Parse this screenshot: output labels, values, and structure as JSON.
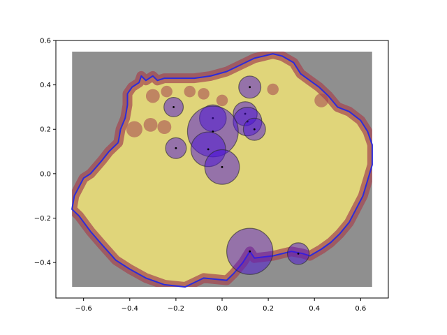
{
  "chart_data": {
    "type": "scatter",
    "title": "",
    "xlabel": "",
    "ylabel": "",
    "xlim": [
      -0.72,
      0.72
    ],
    "ylim": [
      -0.56,
      0.6
    ],
    "xticks": [
      -0.6,
      -0.4,
      -0.2,
      0.0,
      0.2,
      0.4,
      0.6
    ],
    "xtick_labels": [
      "−0.6",
      "−0.4",
      "−0.2",
      "0.0",
      "0.2",
      "0.4",
      "0.6"
    ],
    "yticks": [
      -0.4,
      -0.2,
      0.0,
      0.2,
      0.4,
      0.6
    ],
    "ytick_labels": [
      "−0.4",
      "−0.2",
      "0.0",
      "0.2",
      "0.4",
      "0.6"
    ],
    "grid": false,
    "background_image": {
      "extent": [
        -0.65,
        0.65,
        -0.51,
        0.55
      ],
      "colors": {
        "backdrop": "#8f8f8f",
        "fill": "#e0d57a",
        "stain": "#a4434f"
      }
    },
    "outline": {
      "color": "#2b2bdc",
      "points": [
        [
          -0.45,
          0.14
        ],
        [
          -0.44,
          0.2
        ],
        [
          -0.42,
          0.25
        ],
        [
          -0.41,
          0.31
        ],
        [
          -0.41,
          0.36
        ],
        [
          -0.39,
          0.39
        ],
        [
          -0.36,
          0.41
        ],
        [
          -0.35,
          0.44
        ],
        [
          -0.33,
          0.42
        ],
        [
          -0.3,
          0.44
        ],
        [
          -0.28,
          0.42
        ],
        [
          -0.25,
          0.43
        ],
        [
          -0.2,
          0.43
        ],
        [
          -0.12,
          0.43
        ],
        [
          -0.05,
          0.44
        ],
        [
          0.02,
          0.46
        ],
        [
          0.08,
          0.49
        ],
        [
          0.14,
          0.52
        ],
        [
          0.18,
          0.53
        ],
        [
          0.22,
          0.54
        ],
        [
          0.26,
          0.53
        ],
        [
          0.31,
          0.5
        ],
        [
          0.34,
          0.45
        ],
        [
          0.38,
          0.42
        ],
        [
          0.42,
          0.39
        ],
        [
          0.46,
          0.35
        ],
        [
          0.5,
          0.3
        ],
        [
          0.55,
          0.28
        ],
        [
          0.6,
          0.24
        ],
        [
          0.63,
          0.19
        ],
        [
          0.65,
          0.13
        ],
        [
          0.65,
          0.04
        ],
        [
          0.63,
          -0.03
        ],
        [
          0.61,
          -0.1
        ],
        [
          0.58,
          -0.16
        ],
        [
          0.55,
          -0.22
        ],
        [
          0.51,
          -0.27
        ],
        [
          0.47,
          -0.31
        ],
        [
          0.43,
          -0.34
        ],
        [
          0.38,
          -0.37
        ],
        [
          0.35,
          -0.36
        ],
        [
          0.3,
          -0.35
        ],
        [
          0.22,
          -0.37
        ],
        [
          0.14,
          -0.38
        ],
        [
          0.12,
          -0.35
        ],
        [
          0.09,
          -0.4
        ],
        [
          0.05,
          -0.45
        ],
        [
          0.02,
          -0.48
        ],
        [
          -0.08,
          -0.47
        ],
        [
          -0.16,
          -0.51
        ],
        [
          -0.25,
          -0.5
        ],
        [
          -0.33,
          -0.47
        ],
        [
          -0.4,
          -0.43
        ],
        [
          -0.46,
          -0.39
        ],
        [
          -0.52,
          -0.32
        ],
        [
          -0.57,
          -0.26
        ],
        [
          -0.62,
          -0.19
        ],
        [
          -0.65,
          -0.16
        ],
        [
          -0.64,
          -0.1
        ],
        [
          -0.6,
          -0.02
        ],
        [
          -0.57,
          0.0
        ],
        [
          -0.52,
          0.06
        ],
        [
          -0.49,
          0.1
        ],
        [
          -0.45,
          0.14
        ]
      ]
    },
    "circles": {
      "color": "#4a10d8",
      "marker_color": "#000000",
      "items": [
        {
          "x": 0.12,
          "y": 0.39,
          "r": 0.048
        },
        {
          "x": -0.21,
          "y": 0.3,
          "r": 0.042
        },
        {
          "x": -0.04,
          "y": 0.25,
          "r": 0.058
        },
        {
          "x": 0.1,
          "y": 0.27,
          "r": 0.052
        },
        {
          "x": 0.11,
          "y": 0.235,
          "r": 0.062
        },
        {
          "x": 0.14,
          "y": 0.2,
          "r": 0.048
        },
        {
          "x": -0.04,
          "y": 0.19,
          "r": 0.11
        },
        {
          "x": -0.2,
          "y": 0.115,
          "r": 0.045
        },
        {
          "x": -0.06,
          "y": 0.11,
          "r": 0.075
        },
        {
          "x": 0.0,
          "y": 0.03,
          "r": 0.075
        },
        {
          "x": 0.12,
          "y": -0.35,
          "r": 0.1
        },
        {
          "x": 0.33,
          "y": -0.36,
          "r": 0.047
        }
      ]
    }
  }
}
